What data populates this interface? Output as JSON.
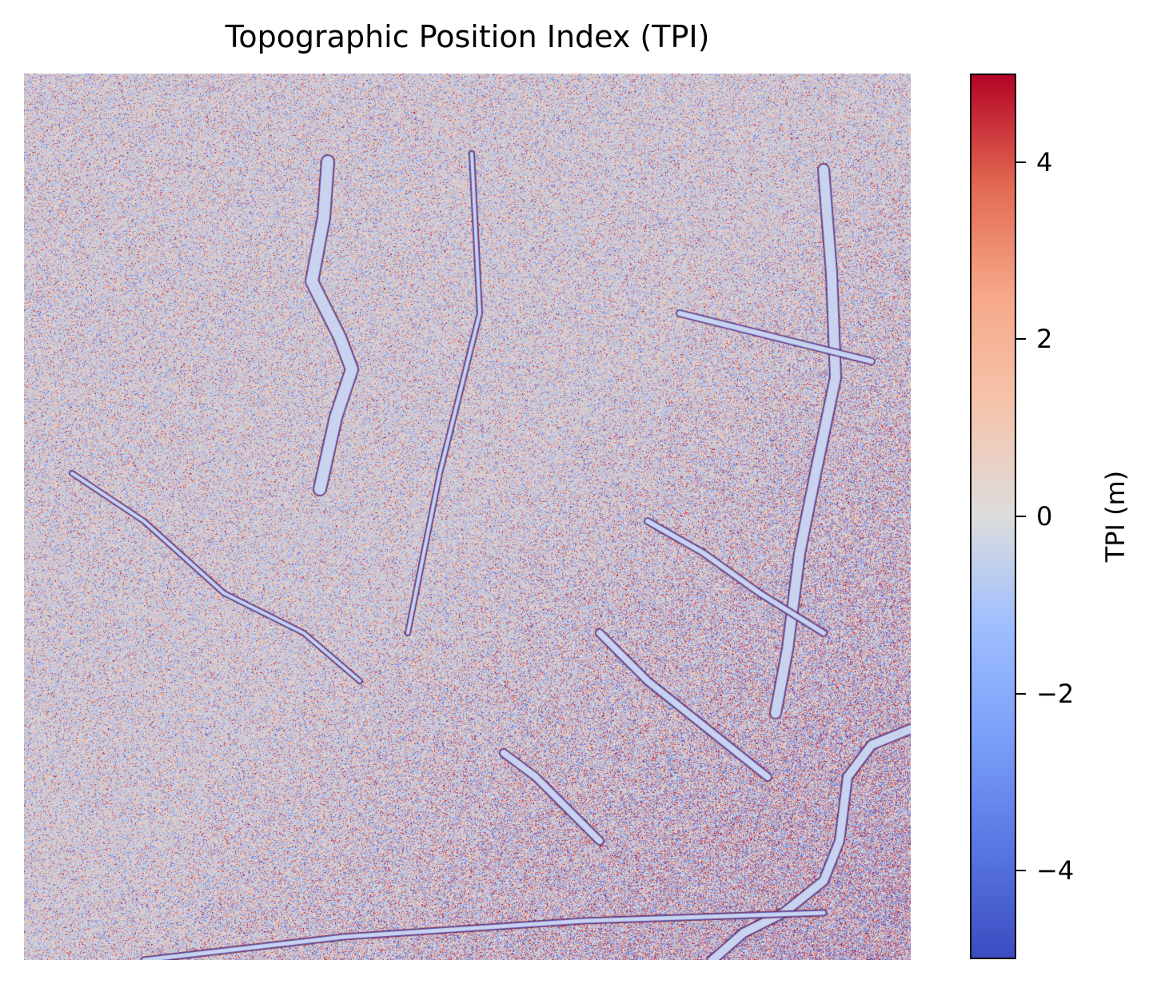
{
  "chart_data": {
    "type": "heatmap",
    "title": "Topographic Position Index (TPI)",
    "xlabel": "",
    "ylabel": "",
    "axes_visible": false,
    "colormap": "coolwarm",
    "value_range": [
      -5,
      5
    ],
    "colorbar": {
      "label": "TPI (m)",
      "ticks": [
        4,
        2,
        0,
        -2,
        -4
      ],
      "tick_labels": [
        "4",
        "2",
        "0",
        "−2",
        "−4"
      ],
      "position": "right"
    },
    "colors": {
      "min": "#3b4cc0",
      "mid": "#dddddd",
      "max": "#b40426"
    },
    "description_note": "Noisy terrain raster; values mostly near 0, with dense negative/positive extremes in the lower-right quadrant along channels."
  }
}
